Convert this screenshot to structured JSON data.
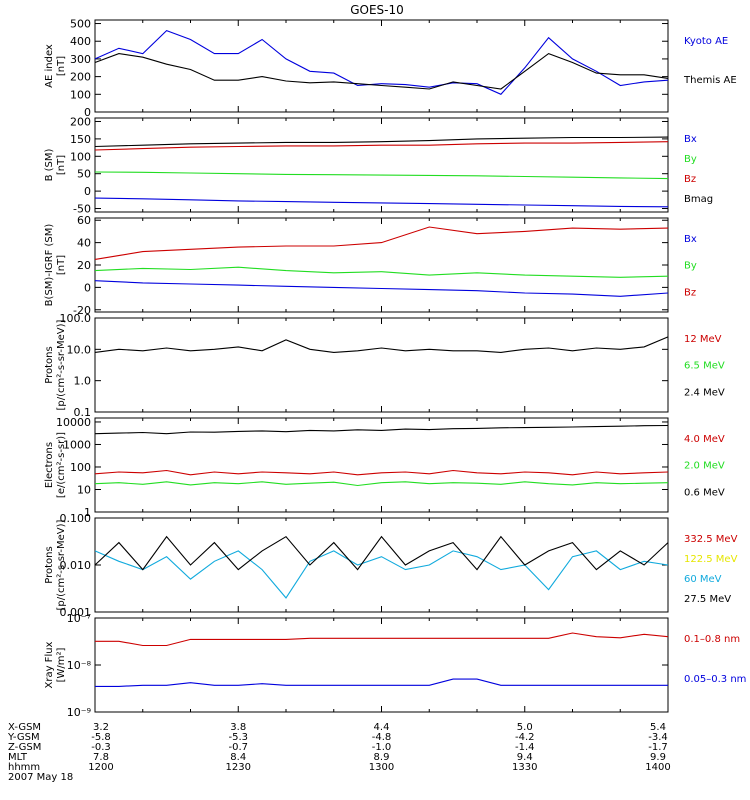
{
  "title": "GOES-10",
  "colors": {
    "black": "#000000",
    "red": "#cc0000",
    "green": "#22dd22",
    "blue": "#0000dd",
    "yellow": "#e6e600",
    "cyan": "#11aadd"
  },
  "footer": {
    "row_labels": [
      "X-GSM",
      "Y-GSM",
      "Z-GSM",
      "MLT",
      "hhmm",
      "2007 May 18"
    ],
    "columns": [
      [
        "3.2",
        "-5.8",
        "-0.3",
        "7.8",
        "1200"
      ],
      [
        "3.8",
        "-5.3",
        "-0.7",
        "8.4",
        "1230"
      ],
      [
        "4.4",
        "-4.8",
        "-1.0",
        "8.9",
        "1300"
      ],
      [
        "5.0",
        "-4.2",
        "-1.4",
        "9.4",
        "1330"
      ],
      [
        "5.4",
        "-3.4",
        "-1.7",
        "9.9",
        "1400"
      ]
    ]
  },
  "chart_data": [
    {
      "type": "line",
      "ylabel": "AE index\n[nT]",
      "yscale": "linear",
      "ylim": [
        0,
        520
      ],
      "yticks": [
        0,
        100,
        200,
        300,
        400,
        500
      ],
      "ytick_labels": [
        "0",
        "100",
        "200",
        "300",
        "400",
        "500"
      ],
      "x": [
        1200,
        1205,
        1210,
        1215,
        1220,
        1225,
        1230,
        1235,
        1240,
        1245,
        1250,
        1255,
        1300,
        1305,
        1310,
        1315,
        1320,
        1325,
        1330,
        1335,
        1340,
        1345,
        1350,
        1355,
        1400
      ],
      "series": [
        {
          "name": "Kyoto AE",
          "color": "blue",
          "values": [
            300,
            360,
            330,
            460,
            410,
            330,
            330,
            410,
            300,
            230,
            220,
            150,
            160,
            155,
            140,
            165,
            160,
            100,
            250,
            420,
            300,
            230,
            150,
            170,
            180
          ]
        },
        {
          "name": "Themis AE",
          "color": "black",
          "values": [
            280,
            330,
            310,
            270,
            240,
            180,
            180,
            200,
            175,
            165,
            170,
            160,
            150,
            140,
            130,
            170,
            150,
            130,
            230,
            330,
            280,
            220,
            210,
            210,
            190
          ]
        }
      ]
    },
    {
      "type": "line",
      "ylabel": "B (SM)\n[nT]",
      "yscale": "linear",
      "ylim": [
        -60,
        210
      ],
      "yticks": [
        -50,
        0,
        50,
        100,
        150,
        200
      ],
      "ytick_labels": [
        "-50",
        "0",
        "50",
        "100",
        "150",
        "200"
      ],
      "x": [
        1200,
        1210,
        1220,
        1230,
        1240,
        1250,
        1300,
        1310,
        1320,
        1330,
        1340,
        1350,
        1400
      ],
      "series": [
        {
          "name": "Bx",
          "color": "blue",
          "values": [
            -20,
            -22,
            -25,
            -28,
            -30,
            -32,
            -34,
            -36,
            -38,
            -40,
            -42,
            -44,
            -45
          ]
        },
        {
          "name": "By",
          "color": "green",
          "values": [
            55,
            54,
            52,
            50,
            48,
            47,
            46,
            45,
            44,
            42,
            40,
            38,
            36
          ]
        },
        {
          "name": "Bz",
          "color": "red",
          "values": [
            118,
            122,
            126,
            128,
            130,
            130,
            132,
            132,
            136,
            138,
            138,
            140,
            142
          ]
        },
        {
          "name": "Bmag",
          "color": "black",
          "values": [
            128,
            132,
            136,
            138,
            140,
            140,
            142,
            145,
            150,
            152,
            154,
            154,
            155
          ]
        }
      ]
    },
    {
      "type": "line",
      "ylabel": "B(SM)-IGRF (SM)\n[nT]",
      "yscale": "linear",
      "ylim": [
        -22,
        62
      ],
      "yticks": [
        -20,
        0,
        20,
        40,
        60
      ],
      "ytick_labels": [
        "-20",
        "0",
        "20",
        "40",
        "60"
      ],
      "x": [
        1200,
        1210,
        1220,
        1230,
        1240,
        1250,
        1300,
        1310,
        1320,
        1330,
        1340,
        1350,
        1400
      ],
      "series": [
        {
          "name": "Bx",
          "color": "blue",
          "values": [
            6,
            4,
            3,
            2,
            1,
            0,
            -1,
            -2,
            -3,
            -5,
            -6,
            -8,
            -5
          ]
        },
        {
          "name": "By",
          "color": "green",
          "values": [
            15,
            17,
            16,
            18,
            15,
            13,
            14,
            11,
            13,
            11,
            10,
            9,
            10
          ]
        },
        {
          "name": "Bz",
          "color": "red",
          "values": [
            25,
            32,
            34,
            36,
            37,
            37,
            40,
            54,
            48,
            50,
            53,
            52,
            53
          ]
        }
      ]
    },
    {
      "type": "line",
      "ylabel": "Protons\n[p/(cm²-s-sr-MeV)]",
      "yscale": "log",
      "ylim": [
        0.1,
        100
      ],
      "yticks": [
        0.1,
        1,
        10,
        100
      ],
      "ytick_labels": [
        "0.1",
        "1.0",
        "10.0",
        "100.0"
      ],
      "x": [
        1200,
        1205,
        1210,
        1215,
        1220,
        1225,
        1230,
        1235,
        1240,
        1245,
        1250,
        1255,
        1300,
        1305,
        1310,
        1315,
        1320,
        1325,
        1330,
        1335,
        1340,
        1345,
        1350,
        1355,
        1400
      ],
      "series": [
        {
          "name": "12 MeV",
          "color": "red",
          "values": [
            null,
            null,
            null,
            null,
            null,
            null,
            null,
            null,
            null,
            null,
            null,
            null,
            null,
            null,
            null,
            null,
            null,
            null,
            null,
            null,
            null,
            null,
            null,
            null,
            null
          ]
        },
        {
          "name": "6.5 MeV",
          "color": "green",
          "values": [
            null,
            null,
            null,
            null,
            null,
            null,
            null,
            null,
            null,
            null,
            null,
            null,
            null,
            null,
            null,
            null,
            null,
            null,
            null,
            null,
            null,
            null,
            null,
            null,
            null
          ]
        },
        {
          "name": "2.4 MeV",
          "color": "black",
          "values": [
            8,
            10,
            9,
            11,
            9,
            10,
            12,
            9,
            20,
            10,
            8,
            9,
            11,
            9,
            10,
            9,
            9,
            8,
            10,
            11,
            9,
            11,
            10,
            12,
            25
          ]
        }
      ]
    },
    {
      "type": "line",
      "ylabel": "Electrons\n[e/(cm²-s-sr)]",
      "yscale": "log",
      "ylim": [
        1,
        15000
      ],
      "yticks": [
        1,
        10,
        100,
        1000,
        10000
      ],
      "ytick_labels": [
        "1",
        "10",
        "100",
        "1000",
        "10000"
      ],
      "x": [
        1200,
        1205,
        1210,
        1215,
        1220,
        1225,
        1230,
        1235,
        1240,
        1245,
        1250,
        1255,
        1300,
        1305,
        1310,
        1315,
        1320,
        1325,
        1330,
        1335,
        1340,
        1345,
        1350,
        1355,
        1400
      ],
      "series": [
        {
          "name": "4.0 MeV",
          "color": "red",
          "values": [
            50,
            60,
            55,
            70,
            45,
            60,
            50,
            60,
            55,
            50,
            60,
            45,
            55,
            60,
            50,
            70,
            55,
            50,
            60,
            55,
            45,
            60,
            50,
            55,
            60
          ]
        },
        {
          "name": "2.0 MeV",
          "color": "green",
          "values": [
            18,
            20,
            17,
            22,
            16,
            20,
            18,
            22,
            17,
            19,
            21,
            15,
            20,
            22,
            18,
            20,
            19,
            17,
            22,
            18,
            16,
            20,
            18,
            19,
            20
          ]
        },
        {
          "name": "0.6 MeV",
          "color": "black",
          "values": [
            3000,
            3200,
            3400,
            3000,
            3600,
            3500,
            3800,
            4000,
            3700,
            4200,
            4000,
            4500,
            4200,
            4800,
            4600,
            5000,
            5200,
            5500,
            5600,
            5800,
            6000,
            6200,
            6500,
            6800,
            7000
          ]
        }
      ]
    },
    {
      "type": "line",
      "ylabel": "Protons\n[p/(cm²-s-sr-MeV)]",
      "yscale": "log",
      "ylim": [
        0.001,
        0.1
      ],
      "yticks": [
        0.001,
        0.01,
        0.1
      ],
      "ytick_labels": [
        "0.001",
        "0.010",
        "0.100"
      ],
      "x": [
        1200,
        1205,
        1210,
        1215,
        1220,
        1225,
        1230,
        1235,
        1240,
        1245,
        1250,
        1255,
        1300,
        1305,
        1310,
        1315,
        1320,
        1325,
        1330,
        1335,
        1340,
        1345,
        1350,
        1355,
        1400
      ],
      "series": [
        {
          "name": "332.5 MeV",
          "color": "red",
          "values": [
            null,
            null,
            null,
            null,
            null,
            null,
            null,
            null,
            null,
            null,
            null,
            null,
            null,
            null,
            null,
            null,
            null,
            null,
            null,
            null,
            null,
            null,
            null,
            null,
            null
          ]
        },
        {
          "name": "122.5 MeV",
          "color": "yellow",
          "values": [
            null,
            null,
            null,
            null,
            null,
            null,
            null,
            null,
            null,
            null,
            null,
            null,
            null,
            null,
            null,
            null,
            null,
            null,
            null,
            null,
            null,
            null,
            null,
            null,
            null
          ]
        },
        {
          "name": "60 MeV",
          "color": "cyan",
          "values": [
            0.02,
            0.012,
            0.008,
            0.015,
            0.005,
            0.012,
            0.02,
            0.008,
            0.002,
            0.012,
            0.02,
            0.01,
            0.015,
            0.008,
            0.01,
            0.02,
            0.015,
            0.008,
            0.01,
            0.003,
            0.015,
            0.02,
            0.008,
            0.012,
            0.01
          ]
        },
        {
          "name": "27.5 MeV",
          "color": "black",
          "values": [
            0.01,
            0.03,
            0.008,
            0.04,
            0.01,
            0.03,
            0.008,
            0.02,
            0.04,
            0.01,
            0.03,
            0.008,
            0.04,
            0.01,
            0.02,
            0.03,
            0.008,
            0.04,
            0.01,
            0.02,
            0.03,
            0.008,
            0.02,
            0.01,
            0.03
          ]
        }
      ]
    },
    {
      "type": "line",
      "ylabel": "Xray Flux\n[W/m²]",
      "yscale": "log",
      "ylim": [
        1e-09,
        1e-07
      ],
      "yticks": [
        1e-09,
        1e-08,
        1e-07
      ],
      "ytick_labels": [
        "10⁻⁹",
        "10⁻⁸",
        "10⁻⁷"
      ],
      "x": [
        1200,
        1205,
        1210,
        1215,
        1220,
        1225,
        1230,
        1235,
        1240,
        1245,
        1250,
        1255,
        1300,
        1305,
        1310,
        1315,
        1320,
        1325,
        1330,
        1335,
        1340,
        1345,
        1350,
        1355,
        1400
      ],
      "series": [
        {
          "name": "0.1–0.8 nm",
          "color": "red",
          "values": [
            3.2e-08,
            3.2e-08,
            2.6e-08,
            2.6e-08,
            3.5e-08,
            3.5e-08,
            3.5e-08,
            3.5e-08,
            3.5e-08,
            3.7e-08,
            3.7e-08,
            3.7e-08,
            3.7e-08,
            3.7e-08,
            3.7e-08,
            3.7e-08,
            3.7e-08,
            3.7e-08,
            3.7e-08,
            3.7e-08,
            4.8e-08,
            4e-08,
            3.8e-08,
            4.5e-08,
            4e-08
          ]
        },
        {
          "name": "0.05–0.3 nm",
          "color": "blue",
          "values": [
            3.5e-09,
            3.5e-09,
            3.7e-09,
            3.7e-09,
            4.2e-09,
            3.7e-09,
            3.7e-09,
            4e-09,
            3.7e-09,
            3.7e-09,
            3.7e-09,
            3.7e-09,
            3.7e-09,
            3.7e-09,
            3.7e-09,
            5e-09,
            5e-09,
            3.7e-09,
            3.7e-09,
            3.7e-09,
            3.7e-09,
            3.7e-09,
            3.7e-09,
            3.7e-09,
            3.7e-09
          ]
        }
      ]
    }
  ]
}
